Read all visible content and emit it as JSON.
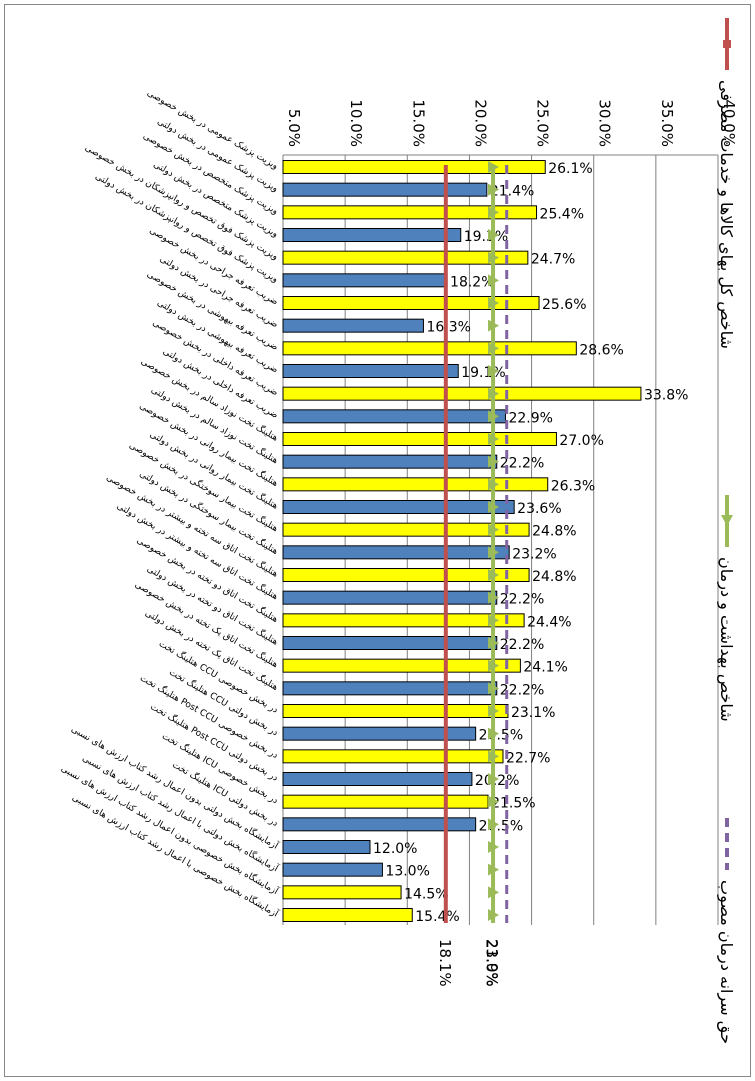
{
  "chart_data": {
    "type": "bar",
    "orientation": "horizontal",
    "categories": [
      "ویزیت پزشک عمومی در بخش خصوصی",
      "ویزیت پزشک عمومی در بخش دولتی",
      "ویزیت پزشک متخصص در بخش خصوصی",
      "ویزیت پزشک متخصص در بخش دولتی",
      "ویزیت پزشک فوق تخصص و روانپزشکان در بخش خصوصی",
      "ویزیت پزشک فوق تخصص و روانپزشکان در بخش دولتی",
      "ضریب تعرفه جراحی در بخش خصوصی",
      "ضریب تعرفه جراحی در بخش دولتی",
      "ضریب تعرفه بیهوشی در بخش خصوصی",
      "ضریب تعرفه بیهوشی در بخش دولتی",
      "ضریب تعرفه داخلی در بخش خصوصی",
      "ضریب تعرفه داخلی در بخش دولتی",
      "هتلینگ تخت نوزاد سالم در بخش خصوصی",
      "هتلینگ تخت نوزاد سالم در بخش دولتی",
      "هتلینگ تخت بیمار روانی در بخش خصوصی",
      "هتلینگ تخت بیمار روانی در بخش دولتی",
      "هتلینگ تخت بیمار سوختگی در بخش خصوصی",
      "هتلینگ تخت بیمار سوختگی در بخش دولتی",
      "هتلینگ تخت اتاق سه تخته و بیشتر در بخش خصوصی",
      "هتلینگ تخت اتاق سه تخته و بیشتر در بخش دولتی",
      "هتلینگ تخت اتاق دو تخته در بخش خصوصی",
      "هتلینگ تخت اتاق دو تخته در بخش دولتی",
      "هتلینگ تخت اتاق یک تخته در بخش خصوصی",
      "هتلینگ تخت اتاق یک تخته در بخش دولتی",
      "هتلینگ تخت CCU در بخش خصوصی",
      "هتلینگ تخت CCU در بخش دولتی",
      "هتلینگ تخت Post CCU در بخش خصوصی",
      "هتلینگ تخت Post CCU در بخش دولتی",
      "هتلینگ تخت ICU در بخش خصوصی",
      "هتلینگ تخت ICU در بخش دولتی",
      "آزمایشگاه بخش دولتی بدون اعمال رشد کتاب ارزش های نسبی",
      "آزمایشگاه بخش دولتی با اعمال رشد کتاب ارزش های نسبی",
      "آزمایشگاه بخش خصوصی بدون اعمال رشد کتاب ارزش های نسبی",
      "آزمایشگاه بخش خصوصی با اعمال رشد کتاب ارزش های نسبی"
    ],
    "values": [
      26.1,
      21.4,
      25.4,
      19.3,
      24.7,
      18.2,
      25.6,
      16.3,
      28.6,
      19.1,
      33.8,
      22.9,
      27.0,
      22.2,
      26.3,
      23.6,
      24.8,
      23.2,
      24.8,
      22.2,
      24.4,
      22.2,
      24.1,
      22.2,
      23.1,
      20.5,
      22.7,
      20.2,
      21.5,
      20.5,
      12.0,
      13.0,
      14.5,
      15.4
    ],
    "value_labels": [
      "26.1%",
      "21.4%",
      "25.4%",
      "19.3%",
      "24.7%",
      "18.2%",
      "25.6%",
      "16.3%",
      "28.6%",
      "19.1%",
      "33.8%",
      "22.9%",
      "27.0%",
      "22.2%",
      "26.3%",
      "23.6%",
      "24.8%",
      "23.2%",
      "24.8%",
      "22.2%",
      "24.4%",
      "22.2%",
      "24.1%",
      "22.2%",
      "23.1%",
      "20.5%",
      "22.7%",
      "20.2%",
      "21.5%",
      "20.5%",
      "12.0%",
      "13.0%",
      "14.5%",
      "15.4%"
    ],
    "colors": [
      "#ffff00",
      "#4f81bd",
      "#ffff00",
      "#4f81bd",
      "#ffff00",
      "#4f81bd",
      "#ffff00",
      "#4f81bd",
      "#ffff00",
      "#4f81bd",
      "#ffff00",
      "#4f81bd",
      "#ffff00",
      "#4f81bd",
      "#ffff00",
      "#4f81bd",
      "#ffff00",
      "#4f81bd",
      "#ffff00",
      "#4f81bd",
      "#ffff00",
      "#4f81bd",
      "#ffff00",
      "#4f81bd",
      "#ffff00",
      "#4f81bd",
      "#ffff00",
      "#4f81bd",
      "#ffff00",
      "#4f81bd",
      "#4f81bd",
      "#4f81bd",
      "#ffff00",
      "#ffff00"
    ],
    "lines": [
      {
        "name": "شاخص کل بهای کالاها و خدمات مصرفی",
        "color": "#c0504d",
        "value": 18.1,
        "value_label": "18.1%",
        "marker": "square",
        "dashed": false
      },
      {
        "name": "شاخص بهداشت و درمان",
        "color": "#9bbb59",
        "value": 21.9,
        "value_label": "21.9%",
        "marker": "triangle",
        "dashed": false
      },
      {
        "name": "حق سرانه درمان مصوب",
        "color": "#8064a2",
        "value": 23.0,
        "value_label": "23.0%",
        "marker": "none",
        "dashed": true
      }
    ],
    "xlim": [
      5,
      40
    ],
    "xticks": [
      {
        "value": 5,
        "label": "5.0%"
      },
      {
        "value": 10,
        "label": "10.0%"
      },
      {
        "value": 15,
        "label": "15.0%"
      },
      {
        "value": 20,
        "label": "20.0%"
      },
      {
        "value": 25,
        "label": "25.0%"
      },
      {
        "value": 30,
        "label": "30.0%"
      },
      {
        "value": 35,
        "label": "35.0%"
      },
      {
        "value": 40,
        "label": "40.0%"
      }
    ],
    "grid": true
  }
}
